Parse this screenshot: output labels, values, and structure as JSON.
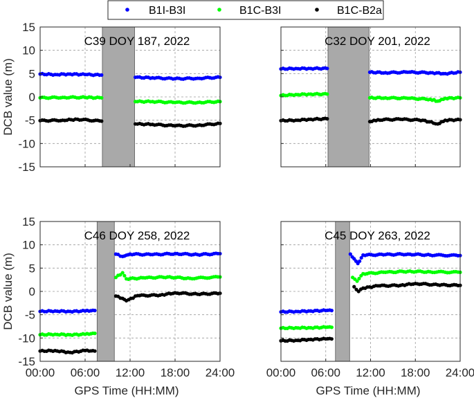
{
  "legend": {
    "entries": [
      {
        "label": "B1I-B3I",
        "color": "#0000ff"
      },
      {
        "label": "B1C-B3I",
        "color": "#00ff00"
      },
      {
        "label": "B1C-B2a",
        "color": "#000000"
      }
    ]
  },
  "labels": {
    "ylabel": "DCB value (m)",
    "xlabel": "GPS Time (HH:MM)"
  },
  "chart_data": [
    {
      "type": "scatter",
      "title": "C39 DOY 187, 2022",
      "xlim": [
        0,
        24
      ],
      "ylim": [
        -15,
        15
      ],
      "xticks": [
        "00:00",
        "06:00",
        "12:00",
        "18:00",
        "24:00"
      ],
      "yticks": [
        "-15",
        "-10",
        "-5",
        "0",
        "5",
        "10",
        "15"
      ],
      "gap": [
        8.3,
        12.6
      ],
      "series": [
        {
          "name": "B1I-B3I",
          "color": "#0000ff",
          "points": [
            [
              0,
              4.9
            ],
            [
              2,
              4.8
            ],
            [
              4,
              4.9
            ],
            [
              6,
              4.8
            ],
            [
              8.2,
              4.7
            ],
            [
              12.7,
              4.2
            ],
            [
              15,
              4.1
            ],
            [
              18,
              3.9
            ],
            [
              21,
              4.0
            ],
            [
              24,
              4.2
            ]
          ]
        },
        {
          "name": "B1C-B3I",
          "color": "#00ff00",
          "points": [
            [
              0,
              -0.2
            ],
            [
              3,
              -0.1
            ],
            [
              6,
              -0.1
            ],
            [
              8.2,
              -0.2
            ],
            [
              12.7,
              -1.0
            ],
            [
              15,
              -1.0
            ],
            [
              18,
              -1.2
            ],
            [
              21,
              -1.2
            ],
            [
              24,
              -1.0
            ]
          ]
        },
        {
          "name": "B1C-B2a",
          "color": "#000000",
          "points": [
            [
              0,
              -5.1
            ],
            [
              3,
              -5.0
            ],
            [
              5,
              -4.8
            ],
            [
              8.2,
              -5.2
            ],
            [
              12.7,
              -5.8
            ],
            [
              15,
              -5.9
            ],
            [
              18,
              -6.2
            ],
            [
              21,
              -6.1
            ],
            [
              24,
              -5.7
            ]
          ]
        }
      ]
    },
    {
      "type": "scatter",
      "title": "C32 DOY 201, 2022",
      "xlim": [
        0,
        24
      ],
      "ylim": [
        -15,
        15
      ],
      "xticks": [
        "00:00",
        "06:00",
        "12:00",
        "18:00",
        "24:00"
      ],
      "yticks": [
        "-15",
        "-10",
        "-5",
        "0",
        "5",
        "10",
        "15"
      ],
      "gap": [
        6.3,
        11.8
      ],
      "series": [
        {
          "name": "B1I-B3I",
          "color": "#0000ff",
          "points": [
            [
              0,
              6.0
            ],
            [
              2,
              6.1
            ],
            [
              4,
              6.1
            ],
            [
              6.2,
              6.1
            ],
            [
              11.9,
              5.3
            ],
            [
              14,
              5.2
            ],
            [
              17,
              5.3
            ],
            [
              20,
              5.2
            ],
            [
              22,
              5.0
            ],
            [
              24,
              5.3
            ]
          ]
        },
        {
          "name": "B1C-B3I",
          "color": "#00ff00",
          "points": [
            [
              0,
              0.3
            ],
            [
              2,
              0.5
            ],
            [
              4,
              0.6
            ],
            [
              6.2,
              0.6
            ],
            [
              11.9,
              -0.2
            ],
            [
              14,
              -0.2
            ],
            [
              17,
              -0.3
            ],
            [
              20,
              -0.5
            ],
            [
              21,
              -0.9
            ],
            [
              22,
              -0.3
            ],
            [
              24,
              -0.2
            ]
          ]
        },
        {
          "name": "B1C-B2a",
          "color": "#000000",
          "points": [
            [
              0,
              -5.1
            ],
            [
              2,
              -5.0
            ],
            [
              4,
              -4.8
            ],
            [
              6.2,
              -4.7
            ],
            [
              11.9,
              -5.3
            ],
            [
              13,
              -4.9
            ],
            [
              16,
              -4.8
            ],
            [
              19,
              -5.0
            ],
            [
              21,
              -5.8
            ],
            [
              22,
              -5.0
            ],
            [
              24,
              -4.9
            ]
          ]
        }
      ]
    },
    {
      "type": "scatter",
      "title": "C46 DOY 258, 2022",
      "xlim": [
        0,
        24
      ],
      "ylim": [
        -15,
        15
      ],
      "xticks": [
        "00:00",
        "06:00",
        "12:00",
        "18:00",
        "24:00"
      ],
      "yticks": [
        "-15",
        "-10",
        "-5",
        "0",
        "5",
        "10",
        "15"
      ],
      "gap": [
        7.6,
        9.9
      ],
      "series": [
        {
          "name": "B1I-B3I",
          "color": "#0000ff",
          "points": [
            [
              0,
              -4.3
            ],
            [
              2,
              -4.2
            ],
            [
              4,
              -4.3
            ],
            [
              6,
              -4.2
            ],
            [
              7.3,
              -4.1
            ],
            [
              10.1,
              8.0
            ],
            [
              11,
              7.5
            ],
            [
              12,
              8.0
            ],
            [
              15,
              7.9
            ],
            [
              18,
              8.1
            ],
            [
              21,
              7.9
            ],
            [
              24,
              8.1
            ]
          ]
        },
        {
          "name": "B1C-B3I",
          "color": "#00ff00",
          "points": [
            [
              0,
              -9.3
            ],
            [
              2,
              -9.2
            ],
            [
              4,
              -9.3
            ],
            [
              6,
              -9.2
            ],
            [
              7.3,
              -9.0
            ],
            [
              10.1,
              3.0
            ],
            [
              11,
              4.0
            ],
            [
              11.5,
              2.7
            ],
            [
              14,
              2.9
            ],
            [
              17,
              3.1
            ],
            [
              20,
              2.8
            ],
            [
              24,
              3.1
            ]
          ]
        },
        {
          "name": "B1C-B2a",
          "color": "#000000",
          "points": [
            [
              0,
              -12.8
            ],
            [
              2,
              -12.7
            ],
            [
              4,
              -13.1
            ],
            [
              6,
              -12.7
            ],
            [
              7.3,
              -12.8
            ],
            [
              10.1,
              -1.0
            ],
            [
              11,
              -1.5
            ],
            [
              11.5,
              -2.0
            ],
            [
              13,
              -0.9
            ],
            [
              16,
              -0.8
            ],
            [
              18,
              -0.3
            ],
            [
              21,
              -0.6
            ],
            [
              24,
              -0.4
            ]
          ]
        }
      ]
    },
    {
      "type": "scatter",
      "title": "C45 DOY 263, 2022",
      "xlim": [
        0,
        24
      ],
      "ylim": [
        -15,
        15
      ],
      "xticks": [
        "00:00",
        "06:00",
        "12:00",
        "18:00",
        "24:00"
      ],
      "yticks": [
        "-15",
        "-10",
        "-5",
        "0",
        "5",
        "10",
        "15"
      ],
      "gap": [
        7.3,
        9.2
      ],
      "series": [
        {
          "name": "B1I-B3I",
          "color": "#0000ff",
          "points": [
            [
              0,
              -4.4
            ],
            [
              2,
              -4.3
            ],
            [
              4,
              -4.2
            ],
            [
              6,
              -4.1
            ],
            [
              6.8,
              -4.1
            ],
            [
              9.3,
              8.0
            ],
            [
              9.8,
              7.0
            ],
            [
              10.3,
              6.0
            ],
            [
              11,
              7.8
            ],
            [
              14,
              7.9
            ],
            [
              17,
              8.0
            ],
            [
              20,
              7.8
            ],
            [
              24,
              7.7
            ]
          ]
        },
        {
          "name": "B1C-B3I",
          "color": "#00ff00",
          "points": [
            [
              0,
              -7.9
            ],
            [
              2,
              -7.8
            ],
            [
              4,
              -7.8
            ],
            [
              6,
              -7.7
            ],
            [
              6.8,
              -7.7
            ],
            [
              9.6,
              3.0
            ],
            [
              10.2,
              2.2
            ],
            [
              11,
              3.8
            ],
            [
              14,
              4.1
            ],
            [
              17,
              4.3
            ],
            [
              20,
              4.2
            ],
            [
              24,
              4.1
            ]
          ]
        },
        {
          "name": "B1C-B2a",
          "color": "#000000",
          "points": [
            [
              0,
              -10.6
            ],
            [
              2,
              -10.5
            ],
            [
              4,
              -10.3
            ],
            [
              6,
              -10.2
            ],
            [
              6.8,
              -10.2
            ],
            [
              9.8,
              1.0
            ],
            [
              10.4,
              0.0
            ],
            [
              11,
              0.7
            ],
            [
              13,
              1.2
            ],
            [
              16,
              1.3
            ],
            [
              18,
              1.7
            ],
            [
              21,
              1.4
            ],
            [
              24,
              1.3
            ]
          ]
        }
      ]
    }
  ]
}
